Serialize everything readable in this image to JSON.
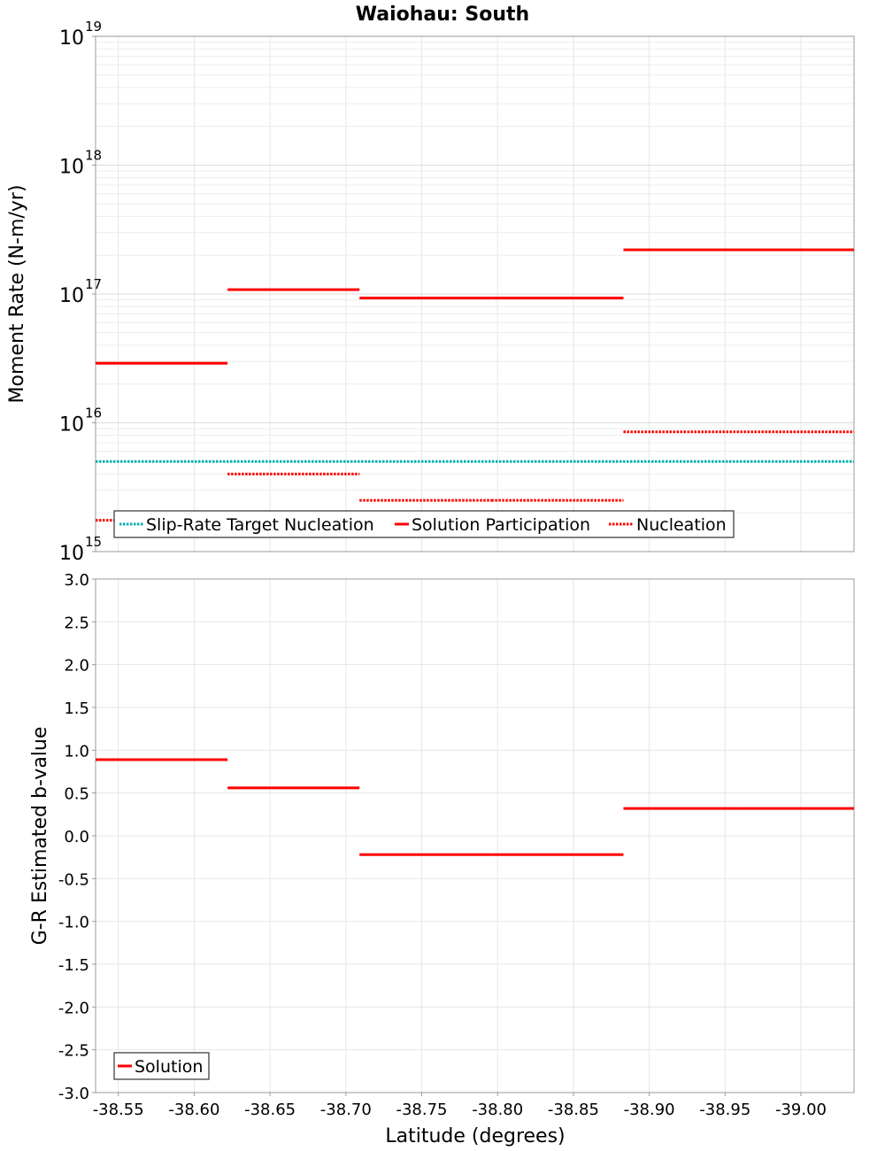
{
  "chart_data": {
    "type": "line",
    "title": "Waiohau: South",
    "xlabel": "Latitude (degrees)",
    "x_tick_labels": [
      "-38.55",
      "-38.60",
      "-38.65",
      "-38.70",
      "-38.75",
      "-38.80",
      "-38.85",
      "-38.90",
      "-38.95",
      "-39.00"
    ],
    "xlim": [
      -38.535,
      -39.035
    ],
    "panels": [
      {
        "name": "moment-rate",
        "ylabel": "Moment Rate (N-m/yr)",
        "yscale": "log",
        "ylim": [
          1000000000000000.0,
          1e+19
        ],
        "y_tick_base": "10",
        "y_tick_exponents": [
          "15",
          "16",
          "17",
          "18",
          "19"
        ],
        "legend": [
          "Slip-Rate Target Nucleation",
          "Solution Participation",
          "Nucleation"
        ],
        "series": [
          {
            "name": "Slip-Rate Target Nucleation",
            "style": "dotted",
            "color": "#00b0b0",
            "segments": [
              {
                "x0": -38.535,
                "x1": -39.035,
                "y": 5000000000000000.0
              }
            ]
          },
          {
            "name": "Solution Participation",
            "style": "solid",
            "color": "#ff0000",
            "segments": [
              {
                "x0": -38.535,
                "x1": -38.622,
                "y": 2.9e+16
              },
              {
                "x0": -38.622,
                "x1": -38.709,
                "y": 1.08e+17
              },
              {
                "x0": -38.709,
                "x1": -38.796,
                "y": 9.3e+16
              },
              {
                "x0": -38.796,
                "x1": -38.883,
                "y": 9.3e+16
              },
              {
                "x0": -38.883,
                "x1": -38.96,
                "y": 2.2e+17
              },
              {
                "x0": -38.96,
                "x1": -39.035,
                "y": 2.2e+17
              }
            ]
          },
          {
            "name": "Nucleation",
            "style": "dotted",
            "color": "#ff0000",
            "segments": [
              {
                "x0": -38.535,
                "x1": -38.622,
                "y": 1750000000000000.0
              },
              {
                "x0": -38.622,
                "x1": -38.709,
                "y": 4000000000000000.0
              },
              {
                "x0": -38.709,
                "x1": -38.796,
                "y": 2500000000000000.0
              },
              {
                "x0": -38.796,
                "x1": -38.883,
                "y": 2500000000000000.0
              },
              {
                "x0": -38.883,
                "x1": -38.96,
                "y": 8500000000000000.0
              },
              {
                "x0": -38.96,
                "x1": -39.035,
                "y": 8500000000000000.0
              }
            ]
          }
        ]
      },
      {
        "name": "b-value",
        "ylabel": "G-R Estimated b-value",
        "yscale": "linear",
        "ylim": [
          -3.0,
          3.0
        ],
        "y_ticks": [
          "3.0",
          "2.5",
          "2.0",
          "1.5",
          "1.0",
          "0.5",
          "0.0",
          "-0.5",
          "-1.0",
          "-1.5",
          "-2.0",
          "-2.5",
          "-3.0"
        ],
        "legend": [
          "Solution"
        ],
        "series": [
          {
            "name": "Solution",
            "style": "solid",
            "color": "#ff0000",
            "segments": [
              {
                "x0": -38.535,
                "x1": -38.622,
                "y": 0.89
              },
              {
                "x0": -38.622,
                "x1": -38.709,
                "y": 0.56
              },
              {
                "x0": -38.709,
                "x1": -38.796,
                "y": -0.22
              },
              {
                "x0": -38.796,
                "x1": -38.883,
                "y": -0.22
              },
              {
                "x0": -38.883,
                "x1": -38.96,
                "y": 0.32
              },
              {
                "x0": -38.96,
                "x1": -39.035,
                "y": 0.32
              }
            ]
          }
        ]
      }
    ]
  }
}
